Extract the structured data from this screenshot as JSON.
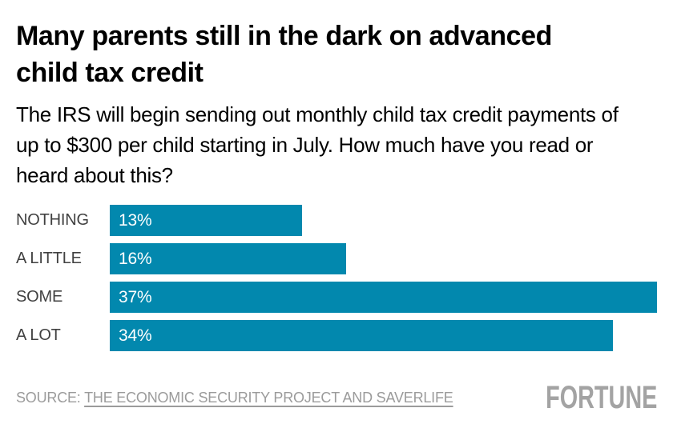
{
  "header": {
    "title": "Many parents still in the dark on advanced child tax credit",
    "subtitle": "The IRS will begin sending out monthly child tax credit payments of up to $300 per child starting in July. How much have you read or heard about this?"
  },
  "chart_data": {
    "type": "bar",
    "orientation": "horizontal",
    "title": "Many parents still in the dark on advanced child tax credit",
    "categories": [
      "NOTHING",
      "A LITTLE",
      "SOME",
      "A LOT"
    ],
    "values": [
      13,
      16,
      37,
      34
    ],
    "value_labels": [
      "13%",
      "16%",
      "37%",
      "34%"
    ],
    "xlabel": "",
    "ylabel": "",
    "xlim": [
      0,
      37
    ],
    "grid": false,
    "legend": false,
    "bar_color": "#0288AE",
    "category_label_color": "#414141",
    "value_text_color": "#FFFFFF"
  },
  "footer": {
    "source_prefix": "SOURCE: ",
    "source_link": "THE ECONOMIC SECURITY PROJECT AND SAVERLIFE",
    "brand": "FORTUNE",
    "source_color": "#9B9B9B",
    "brand_color": "#A3A3A3"
  }
}
